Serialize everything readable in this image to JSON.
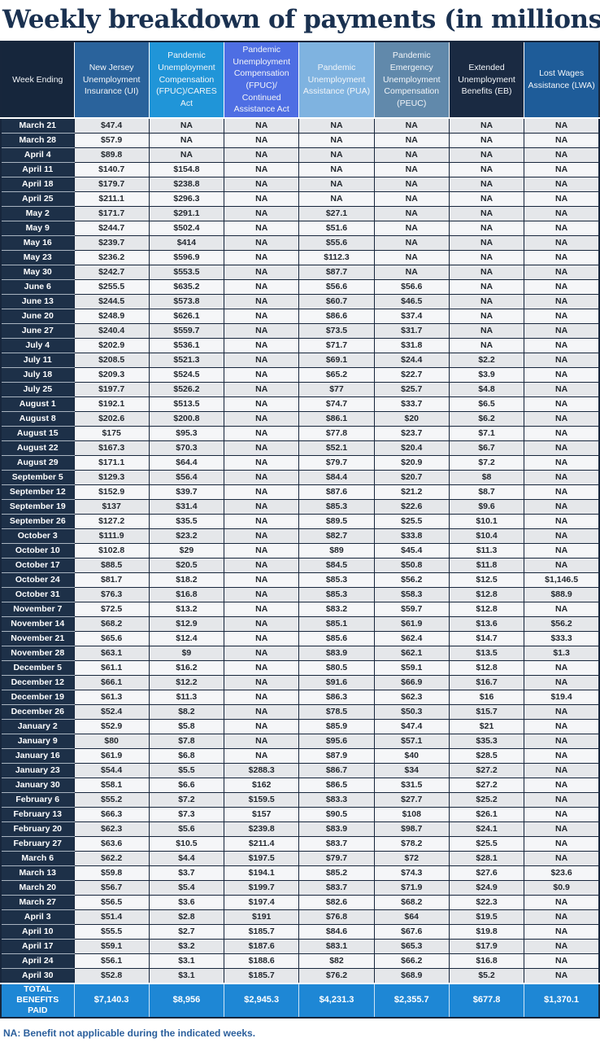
{
  "colors": {
    "title_text": "#1a3150",
    "grid_line": "#17263c",
    "week_cell_bg": "#1d3048",
    "row_odd_bg": "#e5e7ea",
    "row_even_bg": "#f5f6f8",
    "total_row_bg": "#1e87d5",
    "footnote_text": "#2b5f9c"
  },
  "chart_data": {
    "type": "table",
    "title": "Weekly breakdown of payments (in millions)",
    "footnote": "NA: Benefit not applicable during the indicated weeks.",
    "columns": [
      {
        "label": "Week Ending",
        "bg": "#16263c"
      },
      {
        "label": "New Jersey Unemployment Insurance (UI)",
        "bg": "#2a639c"
      },
      {
        "label": "Pandemic Unemployment Compensation (FPUC)/CARES Act",
        "bg": "#2095d8"
      },
      {
        "label": "Pandemic Unemployment Compensation (FPUC)/ Continued Assistance Act",
        "bg": "#4e6ee3"
      },
      {
        "label": "Pandemic Unemployment Assistance (PUA)",
        "bg": "#7fb3e0"
      },
      {
        "label": "Pandemic Emergency Unemployment Compensation (PEUC)",
        "bg": "#6189ab"
      },
      {
        "label": "Extended Unemployment Benefits (EB)",
        "bg": "#1a2a42"
      },
      {
        "label": "Lost Wages Assistance (LWA)",
        "bg": "#1e5c99"
      }
    ],
    "rows": [
      [
        "March 21",
        "$47.4",
        "NA",
        "NA",
        "NA",
        "NA",
        "NA",
        "NA"
      ],
      [
        "March 28",
        "$57.9",
        "NA",
        "NA",
        "NA",
        "NA",
        "NA",
        "NA"
      ],
      [
        "April 4",
        "$89.8",
        "NA",
        "NA",
        "NA",
        "NA",
        "NA",
        "NA"
      ],
      [
        "April 11",
        "$140.7",
        "$154.8",
        "NA",
        "NA",
        "NA",
        "NA",
        "NA"
      ],
      [
        "April 18",
        "$179.7",
        "$238.8",
        "NA",
        "NA",
        "NA",
        "NA",
        "NA"
      ],
      [
        "April 25",
        "$211.1",
        "$296.3",
        "NA",
        "NA",
        "NA",
        "NA",
        "NA"
      ],
      [
        "May 2",
        "$171.7",
        "$291.1",
        "NA",
        "$27.1",
        "NA",
        "NA",
        "NA"
      ],
      [
        "May 9",
        "$244.7",
        "$502.4",
        "NA",
        "$51.6",
        "NA",
        "NA",
        "NA"
      ],
      [
        "May 16",
        "$239.7",
        "$414",
        "NA",
        "$55.6",
        "NA",
        "NA",
        "NA"
      ],
      [
        "May 23",
        "$236.2",
        "$596.9",
        "NA",
        "$112.3",
        "NA",
        "NA",
        "NA"
      ],
      [
        "May 30",
        "$242.7",
        "$553.5",
        "NA",
        "$87.7",
        "NA",
        "NA",
        "NA"
      ],
      [
        "June 6",
        "$255.5",
        "$635.2",
        "NA",
        "$56.6",
        "$56.6",
        "NA",
        "NA"
      ],
      [
        "June 13",
        "$244.5",
        "$573.8",
        "NA",
        "$60.7",
        "$46.5",
        "NA",
        "NA"
      ],
      [
        "June 20",
        "$248.9",
        "$626.1",
        "NA",
        "$86.6",
        "$37.4",
        "NA",
        "NA"
      ],
      [
        "June 27",
        "$240.4",
        "$559.7",
        "NA",
        "$73.5",
        "$31.7",
        "NA",
        "NA"
      ],
      [
        "July 4",
        "$202.9",
        "$536.1",
        "NA",
        "$71.7",
        "$31.8",
        "NA",
        "NA"
      ],
      [
        "July 11",
        "$208.5",
        "$521.3",
        "NA",
        "$69.1",
        "$24.4",
        "$2.2",
        "NA"
      ],
      [
        "July 18",
        "$209.3",
        "$524.5",
        "NA",
        "$65.2",
        "$22.7",
        "$3.9",
        "NA"
      ],
      [
        "July 25",
        "$197.7",
        "$526.2",
        "NA",
        "$77",
        "$25.7",
        "$4.8",
        "NA"
      ],
      [
        "August 1",
        "$192.1",
        "$513.5",
        "NA",
        "$74.7",
        "$33.7",
        "$6.5",
        "NA"
      ],
      [
        "August 8",
        "$202.6",
        "$200.8",
        "NA",
        "$86.1",
        "$20",
        "$6.2",
        "NA"
      ],
      [
        "August 15",
        "$175",
        "$95.3",
        "NA",
        "$77.8",
        "$23.7",
        "$7.1",
        "NA"
      ],
      [
        "August 22",
        "$167.3",
        "$70.3",
        "NA",
        "$52.1",
        "$20.4",
        "$6.7",
        "NA"
      ],
      [
        "August 29",
        "$171.1",
        "$64.4",
        "NA",
        "$79.7",
        "$20.9",
        "$7.2",
        "NA"
      ],
      [
        "September 5",
        "$129.3",
        "$56.4",
        "NA",
        "$84.4",
        "$20.7",
        "$8",
        "NA"
      ],
      [
        "September 12",
        "$152.9",
        "$39.7",
        "NA",
        "$87.6",
        "$21.2",
        "$8.7",
        "NA"
      ],
      [
        "September 19",
        "$137",
        "$31.4",
        "NA",
        "$85.3",
        "$22.6",
        "$9.6",
        "NA"
      ],
      [
        "September 26",
        "$127.2",
        "$35.5",
        "NA",
        "$89.5",
        "$25.5",
        "$10.1",
        "NA"
      ],
      [
        "October 3",
        "$111.9",
        "$23.2",
        "NA",
        "$82.7",
        "$33.8",
        "$10.4",
        "NA"
      ],
      [
        "October 10",
        "$102.8",
        "$29",
        "NA",
        "$89",
        "$45.4",
        "$11.3",
        "NA"
      ],
      [
        "October 17",
        "$88.5",
        "$20.5",
        "NA",
        "$84.5",
        "$50.8",
        "$11.8",
        "NA"
      ],
      [
        "October 24",
        "$81.7",
        "$18.2",
        "NA",
        "$85.3",
        "$56.2",
        "$12.5",
        "$1,146.5"
      ],
      [
        "October 31",
        "$76.3",
        "$16.8",
        "NA",
        "$85.3",
        "$58.3",
        "$12.8",
        "$88.9"
      ],
      [
        "November 7",
        "$72.5",
        "$13.2",
        "NA",
        "$83.2",
        "$59.7",
        "$12.8",
        "NA"
      ],
      [
        "November 14",
        "$68.2",
        "$12.9",
        "NA",
        "$85.1",
        "$61.9",
        "$13.6",
        "$56.2"
      ],
      [
        "November 21",
        "$65.6",
        "$12.4",
        "NA",
        "$85.6",
        "$62.4",
        "$14.7",
        "$33.3"
      ],
      [
        "November 28",
        "$63.1",
        "$9",
        "NA",
        "$83.9",
        "$62.1",
        "$13.5",
        "$1.3"
      ],
      [
        "December 5",
        "$61.1",
        "$16.2",
        "NA",
        "$80.5",
        "$59.1",
        "$12.8",
        "NA"
      ],
      [
        "December 12",
        "$66.1",
        "$12.2",
        "NA",
        "$91.6",
        "$66.9",
        "$16.7",
        "NA"
      ],
      [
        "December 19",
        "$61.3",
        "$11.3",
        "NA",
        "$86.3",
        "$62.3",
        "$16",
        "$19.4"
      ],
      [
        "December 26",
        "$52.4",
        "$8.2",
        "NA",
        "$78.5",
        "$50.3",
        "$15.7",
        "NA"
      ],
      [
        "January 2",
        "$52.9",
        "$5.8",
        "NA",
        "$85.9",
        "$47.4",
        "$21",
        "NA"
      ],
      [
        "January 9",
        "$80",
        "$7.8",
        "NA",
        "$95.6",
        "$57.1",
        "$35.3",
        "NA"
      ],
      [
        "January 16",
        "$61.9",
        "$6.8",
        "NA",
        "$87.9",
        "$40",
        "$28.5",
        "NA"
      ],
      [
        "January 23",
        "$54.4",
        "$5.5",
        "$288.3",
        "$86.7",
        "$34",
        "$27.2",
        "NA"
      ],
      [
        "January 30",
        "$58.1",
        "$6.6",
        "$162",
        "$86.5",
        "$31.5",
        "$27.2",
        "NA"
      ],
      [
        "February 6",
        "$55.2",
        "$7.2",
        "$159.5",
        "$83.3",
        "$27.7",
        "$25.2",
        "NA"
      ],
      [
        "February 13",
        "$66.3",
        "$7.3",
        "$157",
        "$90.5",
        "$108",
        "$26.1",
        "NA"
      ],
      [
        "February 20",
        "$62.3",
        "$5.6",
        "$239.8",
        "$83.9",
        "$98.7",
        "$24.1",
        "NA"
      ],
      [
        "February 27",
        "$63.6",
        "$10.5",
        "$211.4",
        "$83.7",
        "$78.2",
        "$25.5",
        "NA"
      ],
      [
        "March 6",
        "$62.2",
        "$4.4",
        "$197.5",
        "$79.7",
        "$72",
        "$28.1",
        "NA"
      ],
      [
        "March 13",
        "$59.8",
        "$3.7",
        "$194.1",
        "$85.2",
        "$74.3",
        "$27.6",
        "$23.6"
      ],
      [
        "March 20",
        "$56.7",
        "$5.4",
        "$199.7",
        "$83.7",
        "$71.9",
        "$24.9",
        "$0.9"
      ],
      [
        "March 27",
        "$56.5",
        "$3.6",
        "$197.4",
        "$82.6",
        "$68.2",
        "$22.3",
        "NA"
      ],
      [
        "April 3",
        "$51.4",
        "$2.8",
        "$191",
        "$76.8",
        "$64",
        "$19.5",
        "NA"
      ],
      [
        "April 10",
        "$55.5",
        "$2.7",
        "$185.7",
        "$84.6",
        "$67.6",
        "$19.8",
        "NA"
      ],
      [
        "April 17",
        "$59.1",
        "$3.2",
        "$187.6",
        "$83.1",
        "$65.3",
        "$17.9",
        "NA"
      ],
      [
        "April 24",
        "$56.1",
        "$3.1",
        "$188.6",
        "$82",
        "$66.2",
        "$16.8",
        "NA"
      ],
      [
        "April 30",
        "$52.8",
        "$3.1",
        "$185.7",
        "$76.2",
        "$68.9",
        "$5.2",
        "NA"
      ]
    ],
    "total_row": [
      "TOTAL BENEFITS PAID",
      "$7,140.3",
      "$8,956",
      "$2,945.3",
      "$4,231.3",
      "$2,355.7",
      "$677.8",
      "$1,370.1"
    ]
  }
}
